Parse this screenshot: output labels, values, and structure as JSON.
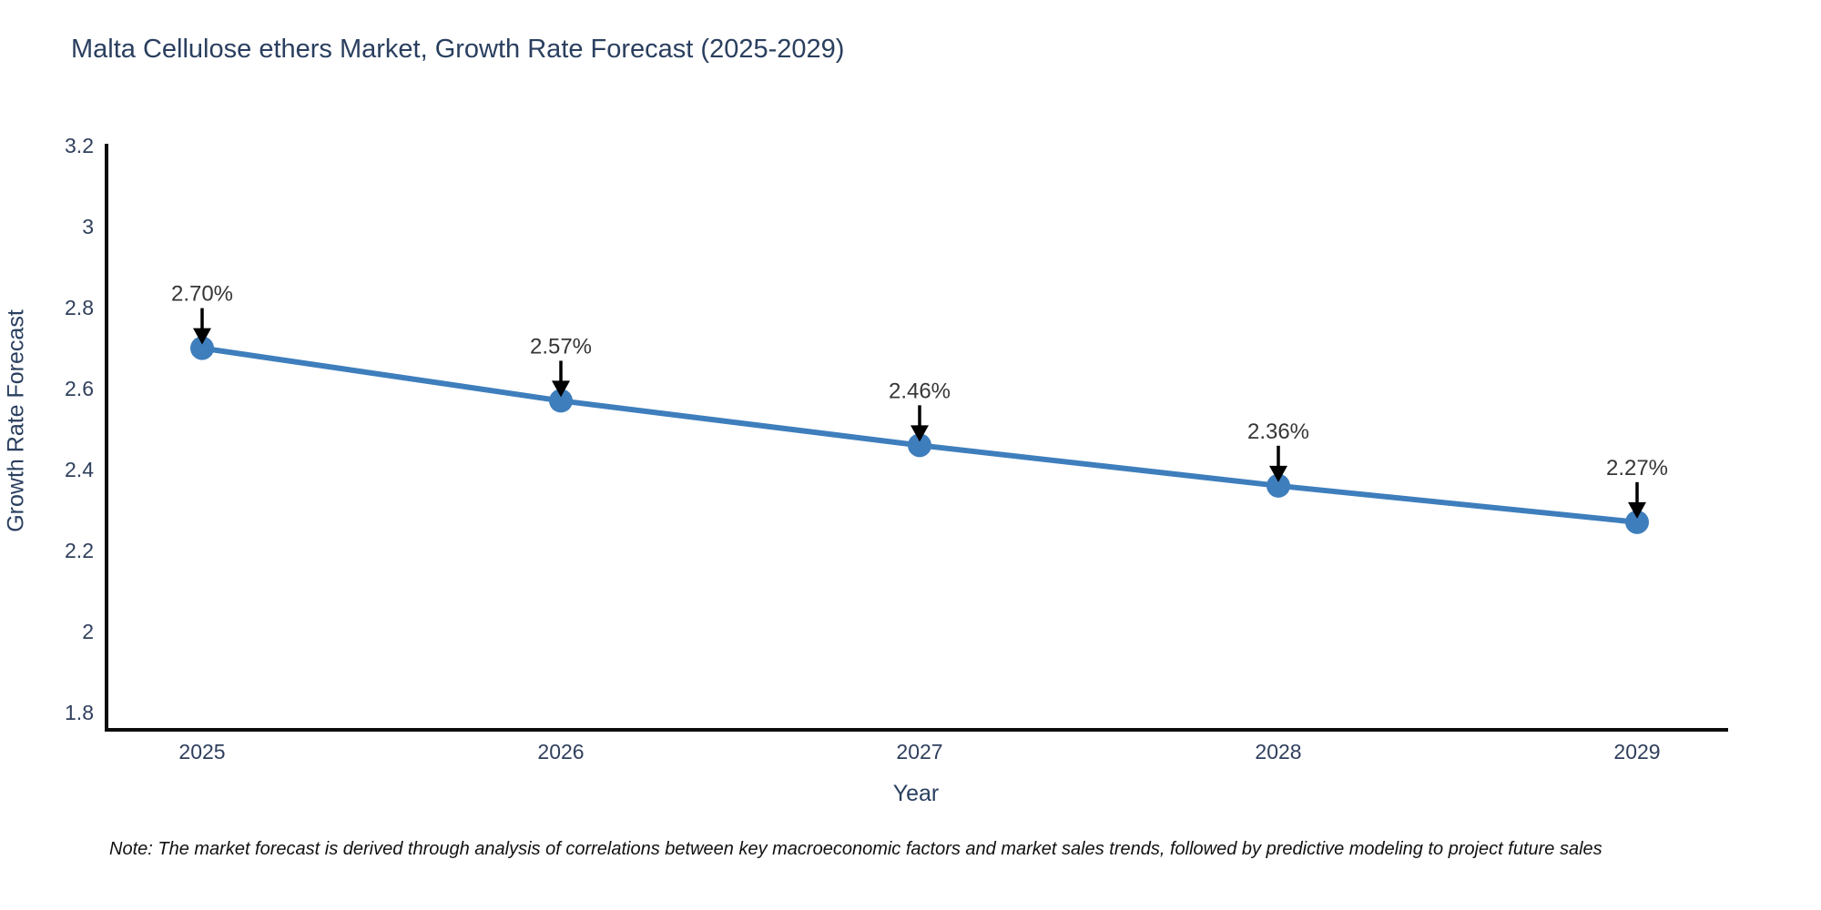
{
  "chart_data": {
    "type": "line",
    "title": "Malta Cellulose ethers Market, Growth Rate Forecast (2025-2029)",
    "xlabel": "Year",
    "ylabel": "Growth Rate Forecast",
    "categories": [
      "2025",
      "2026",
      "2027",
      "2028",
      "2029"
    ],
    "values": [
      2.7,
      2.57,
      2.46,
      2.36,
      2.27
    ],
    "point_labels": [
      "2.70%",
      "2.57%",
      "2.46%",
      "2.36%",
      "2.27%"
    ],
    "ylim": [
      1.757,
      3.205
    ],
    "yticks": [
      1.8,
      2,
      2.2,
      2.4,
      2.6,
      2.8,
      3,
      3.2
    ],
    "ytick_labels": [
      "1.8",
      "2",
      "2.2",
      "2.4",
      "2.6",
      "2.8",
      "3",
      "3.2"
    ],
    "grid": false,
    "legend": false,
    "line_color": "#3e7ebc",
    "marker_color": "#3e7ebc",
    "axis_color": "#0d0d0d",
    "annotation_arrow_color": "#000000"
  },
  "note": {
    "text": "Note: The market forecast is derived through analysis of correlations between key macroeconomic factors and market sales trends, followed by predictive modeling to project future sales"
  },
  "colors": {
    "background": "#ffffff",
    "title_text": "#2a3f5f",
    "tick_text": "#2f3f5c",
    "annotation_text": "#363636"
  }
}
